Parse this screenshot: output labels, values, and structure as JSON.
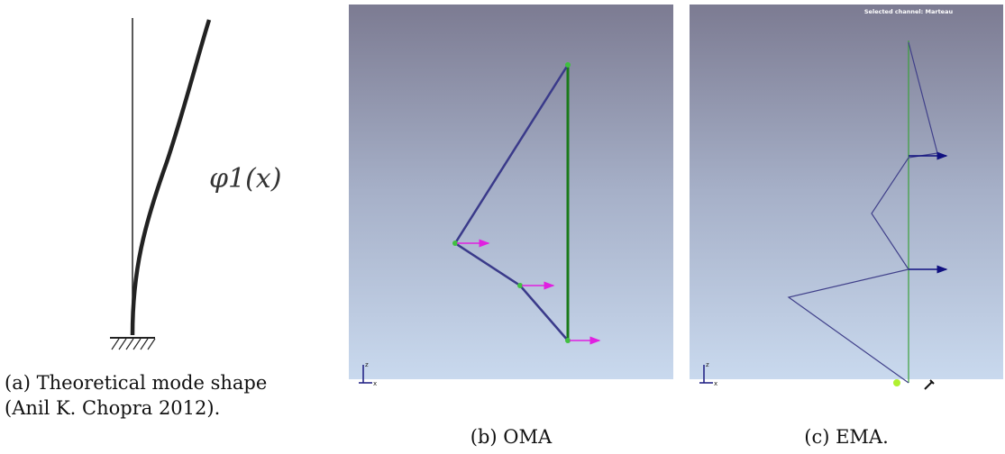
{
  "panel_a": {
    "mode_label": "φ1(x)",
    "caption": [
      "(a) Theoretical mode shape",
      "(Anil K. Chopra 2012)."
    ]
  },
  "panel_b": {
    "caption": "(b) OMA",
    "triad": {
      "z": "z",
      "x": "x"
    }
  },
  "panel_c": {
    "header": "Selected channel: Marteau",
    "caption": "(c) EMA.",
    "triad": {
      "z": "z",
      "x": "x"
    }
  }
}
